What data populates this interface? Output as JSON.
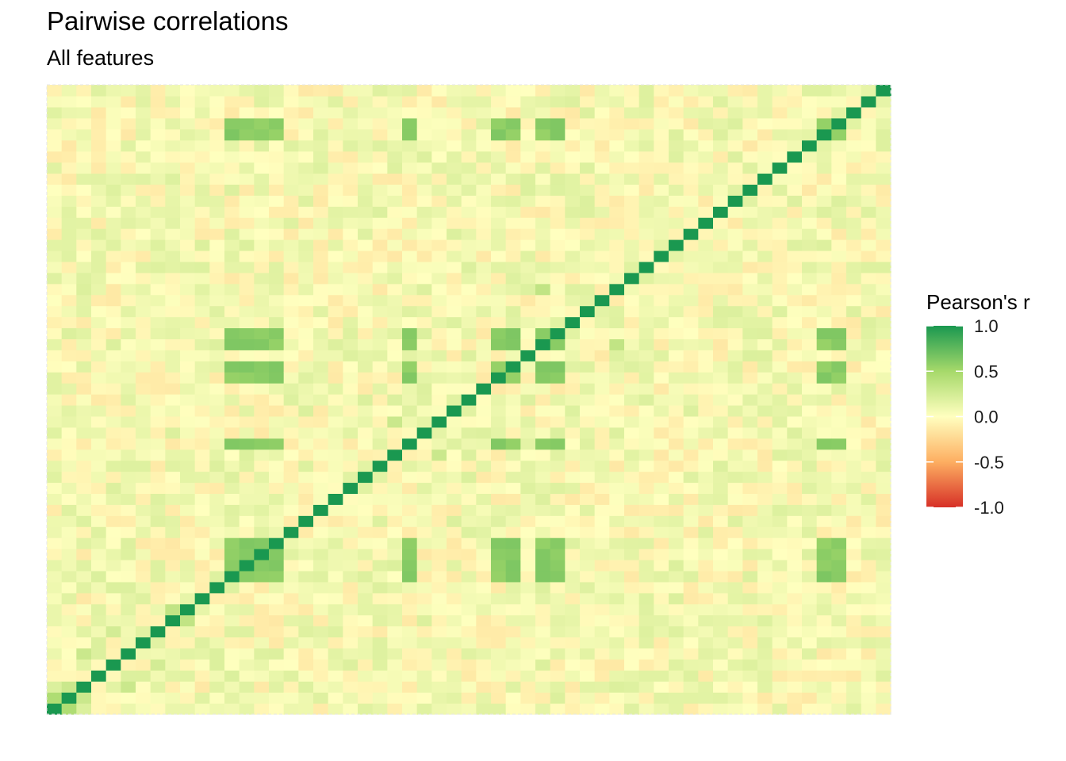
{
  "title": "Pairwise correlations",
  "subtitle": "All features",
  "chart_data": {
    "type": "heatmap",
    "title": "Pairwise correlations",
    "subtitle": "All features",
    "n_features": 57,
    "value_range": [
      -1,
      1
    ],
    "diagonal": 1.0,
    "grid": false,
    "legend": {
      "title": "Pearson's r",
      "placement": "right",
      "ticks": [
        "1.0",
        "0.5",
        "0.0",
        "-0.5",
        "-1.0"
      ],
      "tick_values": [
        1.0,
        0.5,
        0.0,
        -0.5,
        -1.0
      ]
    },
    "colors": {
      "low": "#d73027",
      "mid_low": "#fdae61",
      "mid": "#ffffbf",
      "mid_high": "#a6d96a",
      "high": "#1a9850"
    },
    "correlated_block": {
      "features": [
        12,
        13,
        14,
        15,
        24,
        30,
        31,
        33,
        34,
        52,
        53
      ],
      "pairwise_r": 0.6
    },
    "notable_pairs": [
      {
        "i": 0,
        "j": 1,
        "r": 0.45
      },
      {
        "i": 1,
        "j": 2,
        "r": 0.3
      },
      {
        "i": 0,
        "j": 2,
        "r": 0.2
      },
      {
        "i": 2,
        "j": 5,
        "r": 0.3
      },
      {
        "i": 8,
        "j": 9,
        "r": 0.35
      },
      {
        "i": 3,
        "j": 12,
        "r": 0.2
      },
      {
        "i": 17,
        "j": 27,
        "r": 0.2
      },
      {
        "i": 33,
        "j": 38,
        "r": 0.35
      },
      {
        "i": 23,
        "j": 26,
        "r": 0.3
      },
      {
        "i": 21,
        "j": 28,
        "r": 0.2
      },
      {
        "i": 4,
        "j": 7,
        "r": 0.25
      }
    ],
    "note_sign": "off-diagonal values mostly between -0.2 and 0.2"
  }
}
